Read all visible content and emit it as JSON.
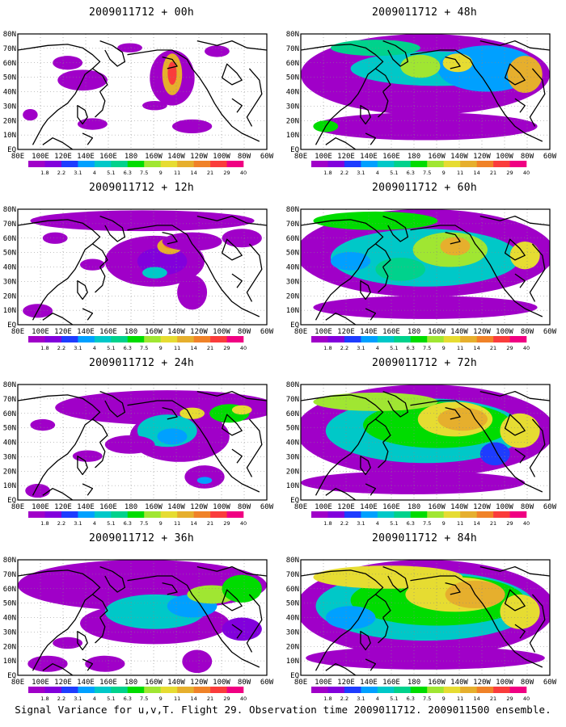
{
  "panels": [
    {
      "title": "2009011712 + 00h",
      "lead_hours": 0
    },
    {
      "title": "2009011712 + 48h",
      "lead_hours": 48
    },
    {
      "title": "2009011712 + 12h",
      "lead_hours": 12
    },
    {
      "title": "2009011712 + 60h",
      "lead_hours": 60
    },
    {
      "title": "2009011712 + 24h",
      "lead_hours": 24
    },
    {
      "title": "2009011712 + 72h",
      "lead_hours": 72
    },
    {
      "title": "2009011712 + 36h",
      "lead_hours": 36
    },
    {
      "title": "2009011712 + 84h",
      "lead_hours": 84
    }
  ],
  "lat_labels": [
    "EQ",
    "10N",
    "20N",
    "30N",
    "40N",
    "50N",
    "60N",
    "70N",
    "80N"
  ],
  "lon_labels": [
    "80E",
    "100E",
    "120E",
    "140E",
    "160E",
    "180",
    "160W",
    "140W",
    "120W",
    "100W",
    "80W",
    "60W"
  ],
  "colorbar": {
    "labels": [
      "1.8",
      "2.2",
      "3.1",
      "4",
      "5.1",
      "6.3",
      "7.5",
      "9",
      "11",
      "14",
      "21",
      "29",
      "40"
    ],
    "colors": [
      "#a000c8",
      "#8200dc",
      "#1e3cff",
      "#00a0ff",
      "#00c8c8",
      "#00d28c",
      "#00dc00",
      "#a0e632",
      "#e6dc32",
      "#e6af2d",
      "#f08228",
      "#fa3c3c",
      "#f00082"
    ]
  },
  "caption": "Signal Variance for u,v,T. Flight 29. Observation time 2009011712. 2009011500 ensemble."
}
